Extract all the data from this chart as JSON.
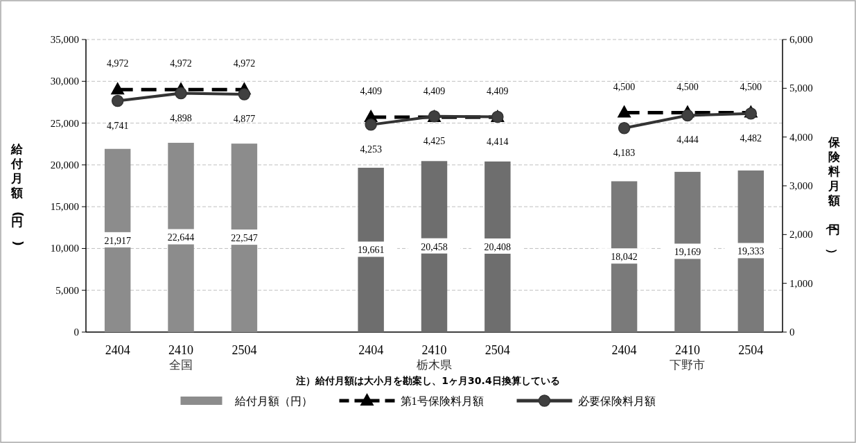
{
  "chart_data": {
    "type": "bar",
    "categories": [
      "2404",
      "2410",
      "2504",
      null,
      "2404",
      "2410",
      "2504",
      null,
      "2404",
      "2410",
      "2504"
    ],
    "series": [
      {
        "name": "給付月額（円）",
        "color": "#8c8c8c",
        "colors": [
          "#8c8c8c",
          "#8c8c8c",
          "#8c8c8c",
          null,
          "#6e6e6e",
          "#6e6e6e",
          "#6e6e6e",
          null,
          "#7a7a7a",
          "#7a7a7a",
          "#7a7a7a"
        ],
        "values": [
          21917,
          22644,
          22547,
          null,
          19661,
          20458,
          20408,
          null,
          18042,
          19169,
          19333
        ],
        "value_labels": [
          "21,917",
          "22,644",
          "22,547",
          null,
          "19,661",
          "20,458",
          "20,408",
          null,
          "18,042",
          "19,169",
          "19,333"
        ]
      },
      {
        "name": "第1号保険料月額",
        "type": "line",
        "axis": "y2",
        "color": "#000000",
        "marker": "triangle",
        "line_style": "dashed",
        "values": [
          4972,
          4972,
          4972,
          null,
          4409,
          4409,
          4409,
          null,
          4500,
          4500,
          4500
        ],
        "value_labels": [
          "4,972",
          "4,972",
          "4,972",
          null,
          "4,409",
          "4,409",
          "4,409",
          null,
          "4,500",
          "4,500",
          "4,500"
        ]
      },
      {
        "name": "必要保険料月額",
        "type": "line",
        "axis": "y2",
        "color": "#333333",
        "marker": "circle",
        "line_style": "solid",
        "values": [
          4741,
          4898,
          4877,
          null,
          4253,
          4425,
          4414,
          null,
          4183,
          4444,
          4482
        ],
        "value_labels": [
          "4,741",
          "4,898",
          "4,877",
          null,
          "4,253",
          "4,425",
          "4,414",
          null,
          "4,183",
          "4,444",
          "4,482"
        ]
      }
    ],
    "ylabel": "給付月額(円)",
    "y2label": "保険料月額（円）",
    "ylim": [
      0,
      35000
    ],
    "yticks": [
      0,
      {
        "value": 5000,
        "label": "5,000"
      },
      {
        "value": 10000,
        "label": "10,000"
      },
      {
        "value": 15000,
        "label": "15,000"
      },
      {
        "value": 20000,
        "label": "20,000"
      },
      {
        "value": 25000,
        "label": "25,000"
      },
      {
        "value": 30000,
        "label": "30,000"
      },
      {
        "value": 35000,
        "label": "35,000"
      }
    ],
    "y2lim": [
      0,
      6000
    ],
    "y2ticks": [
      0,
      {
        "value": 1000,
        "label": "1,000"
      },
      {
        "value": 2000,
        "label": "2,000"
      },
      {
        "value": 3000,
        "label": "3,000"
      },
      {
        "value": 4000,
        "label": "4,000"
      },
      {
        "value": 5000,
        "label": "5,000"
      },
      {
        "value": 6000,
        "label": "6,000"
      }
    ],
    "annotations": [
      "全国",
      "栃木県",
      "下野市",
      "注）給付月額は大小月を勘案し、1ヶ月30.4日換算している"
    ],
    "grid": "y",
    "legend": "bottom"
  }
}
